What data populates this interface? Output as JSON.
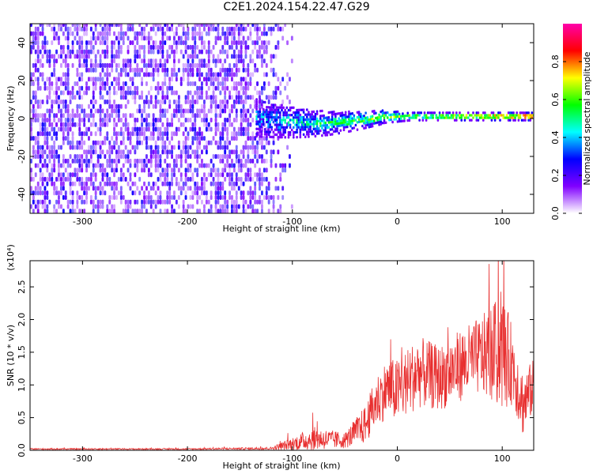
{
  "title": "C2E1.2024.154.22.47.G29",
  "chart_data": [
    {
      "type": "heatmap",
      "xlabel": "Height of straight line (km)",
      "ylabel": "Frequency (Hz)",
      "xlim": [
        -350,
        130
      ],
      "ylim": [
        -50,
        50
      ],
      "x_ticks": [
        -300,
        -200,
        -100,
        0,
        100
      ],
      "y_ticks": [
        -40,
        -20,
        0,
        20,
        40
      ],
      "colorbar": {
        "label": "Normalized spectral amplitude",
        "range": [
          0,
          1
        ],
        "ticks": [
          "0.0",
          "0.2",
          "0.4",
          "0.6",
          "0.8"
        ],
        "colors": [
          "#ffffff",
          "#8000ff",
          "#0000ff",
          "#00ffff",
          "#00ff00",
          "#ffff00",
          "#ff0000",
          "#ff00aa"
        ]
      },
      "signal_band": {
        "x_start": -135,
        "x_end": 130,
        "center_frequency": 0,
        "half_width": [
          10,
          2
        ]
      },
      "noise_region": {
        "x_start": -350,
        "x_end": -120,
        "level": 0.2
      }
    },
    {
      "type": "line",
      "xlabel": "Height of straight line (km)",
      "ylabel": "SNR (10 * v/v)",
      "multiplier": "(x10⁴)",
      "xlim": [
        -350,
        130
      ],
      "ylim": [
        0,
        2.9
      ],
      "x_ticks": [
        -300,
        -200,
        -100,
        0,
        100
      ],
      "y_ticks": [
        "0.0",
        "0.5",
        "1.0",
        "1.5",
        "2.0",
        "2.5"
      ],
      "y_tick_values": [
        0,
        0.5,
        1.0,
        1.5,
        2.0,
        2.5
      ],
      "color": "#e83030",
      "series_envelope": {
        "x": [
          -350,
          -200,
          -120,
          -100,
          -80,
          -50,
          -30,
          -20,
          -10,
          0,
          20,
          40,
          60,
          80,
          100,
          110,
          120,
          130
        ],
        "mean": [
          0.02,
          0.02,
          0.03,
          0.1,
          0.18,
          0.15,
          0.4,
          0.75,
          0.95,
          0.9,
          1.2,
          1.1,
          1.3,
          1.45,
          1.5,
          1.3,
          0.7,
          1.0
        ],
        "amplitude": [
          0.01,
          0.01,
          0.02,
          0.1,
          0.18,
          0.12,
          0.3,
          0.4,
          0.45,
          0.5,
          0.55,
          0.5,
          0.55,
          0.6,
          0.9,
          0.6,
          0.5,
          0.4
        ]
      }
    }
  ]
}
